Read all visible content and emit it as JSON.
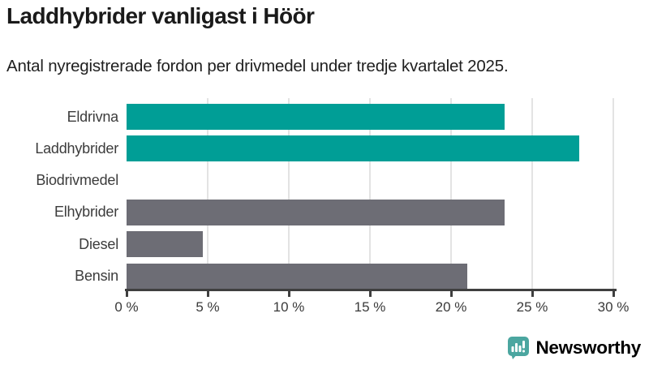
{
  "header": {
    "title": "Laddhybrider vanligast i Höör",
    "subtitle": "Antal nyregistrerade fordon per drivmedel under tredje kvartalet 2025."
  },
  "chart_data": {
    "type": "bar",
    "orientation": "horizontal",
    "title": "Laddhybrider vanligast i Höör",
    "categories": [
      "Eldrivna",
      "Laddhybrider",
      "Biodrivmedel",
      "Elhybrider",
      "Diesel",
      "Bensin"
    ],
    "values": [
      23.3,
      27.9,
      0,
      23.3,
      4.7,
      21.0
    ],
    "unit": "%",
    "xlabel": "",
    "ylabel": "",
    "xlim": [
      0,
      30
    ],
    "x_tick_values": [
      0,
      5,
      10,
      15,
      20,
      25,
      30
    ],
    "x_tick_labels": [
      "0 %",
      "5 %",
      "10 %",
      "15 %",
      "20 %",
      "25 %",
      "30 %"
    ],
    "bar_colors": [
      "#009E96",
      "#009E96",
      "#6D6D75",
      "#6D6D75",
      "#6D6D75",
      "#6D6D75"
    ],
    "highlight_color": "#009E96",
    "default_color": "#6D6D75",
    "gridline_color": "#e3e3e3",
    "axis_color": "#3f3f3f",
    "grid": "vertical",
    "legend": "none"
  },
  "footer": {
    "brand": "Newsworthy",
    "brand_color": "#3E9D95",
    "logo_icon": "bar-chart-speech-bubble-icon",
    "logo_color": "#4BA6A0"
  }
}
